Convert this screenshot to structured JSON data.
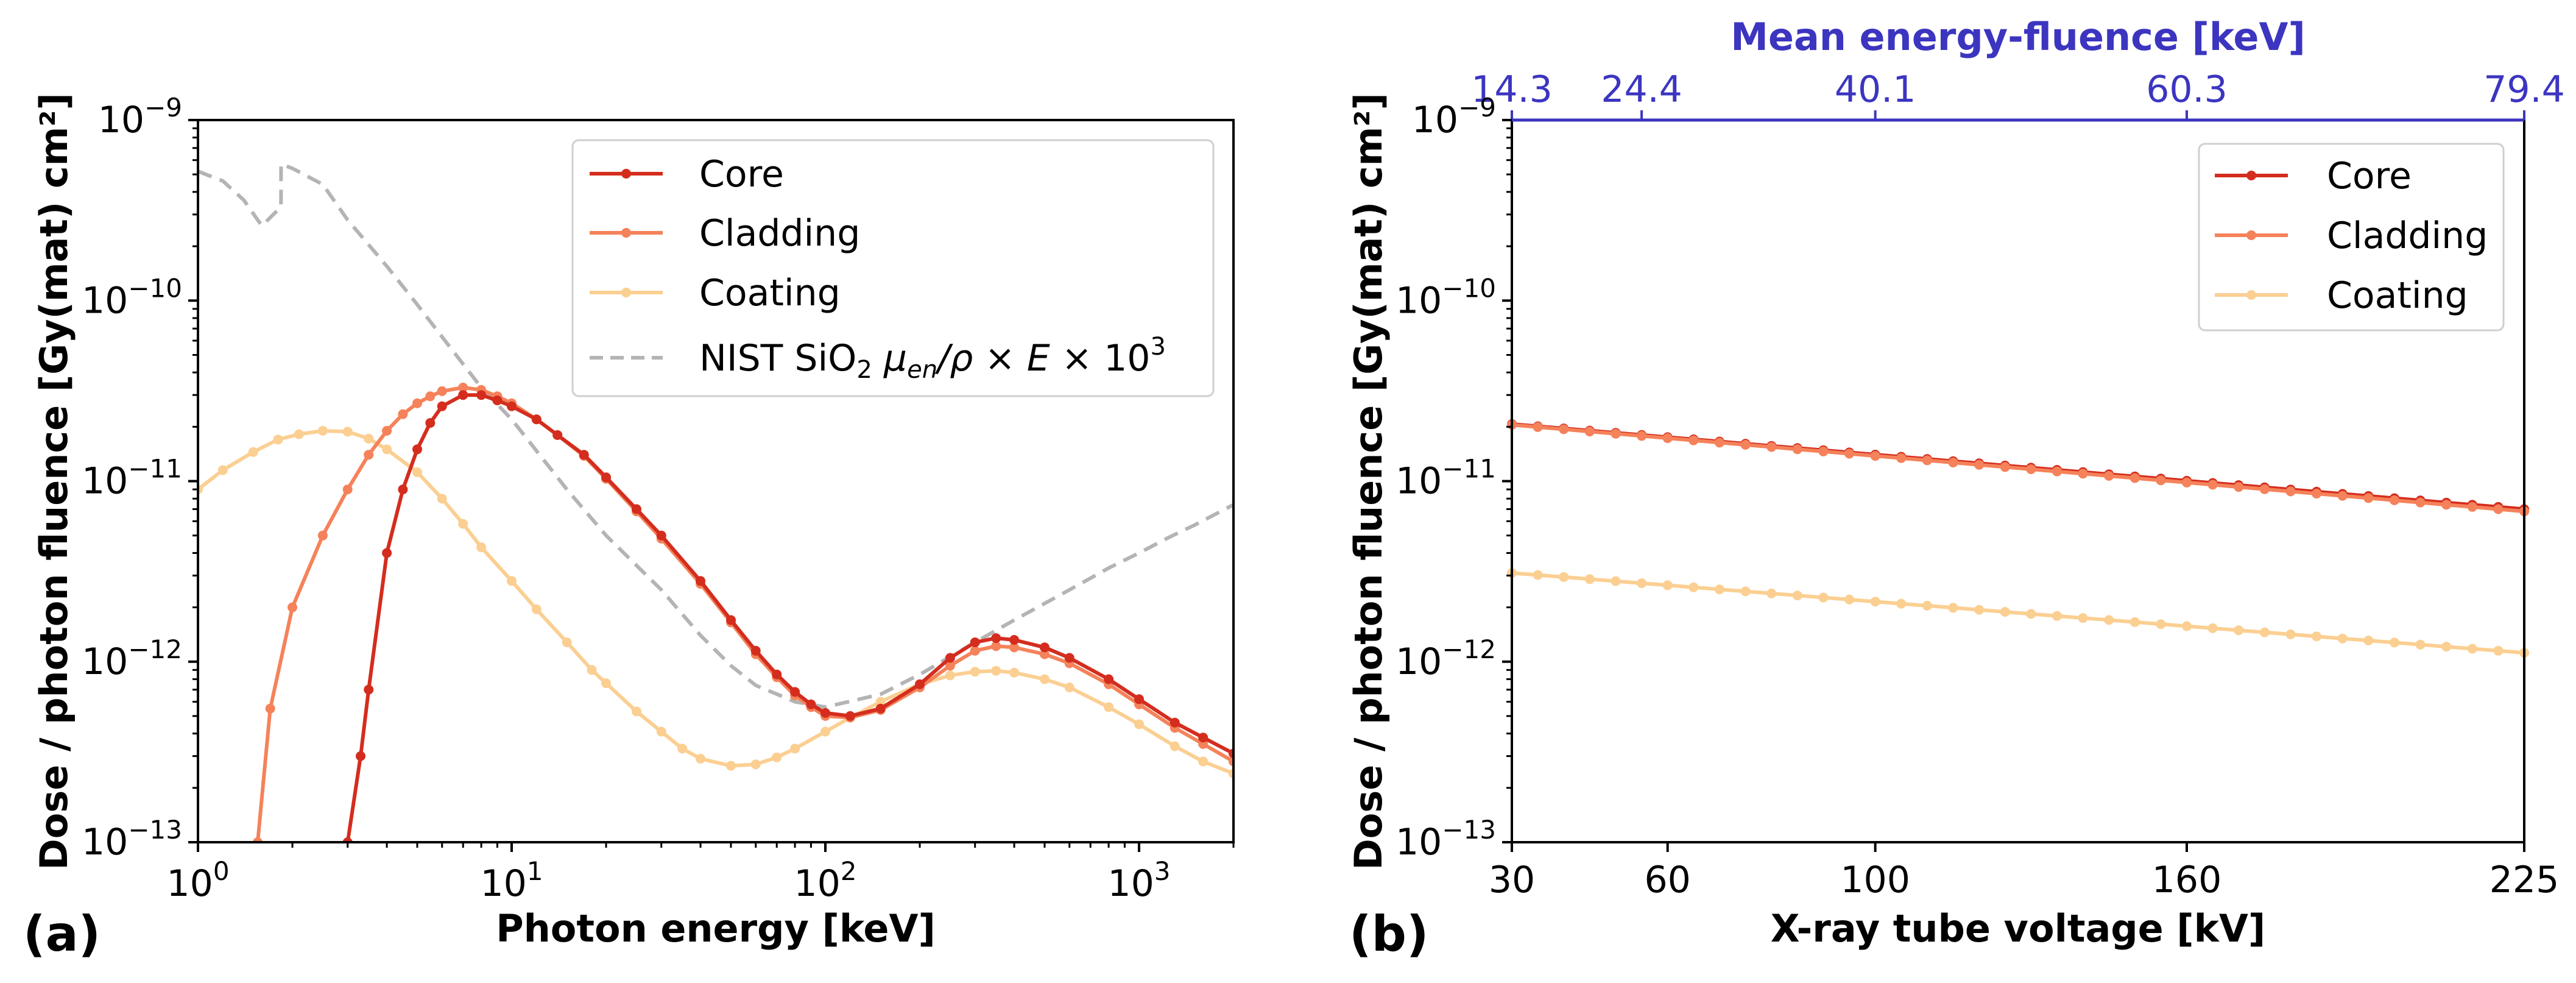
{
  "colors": {
    "core": "#d42d1e",
    "cladding": "#f5825a",
    "coating": "#fbcf92",
    "nist": "#b4b4b4",
    "top_axis": "#3c35c0"
  },
  "chart_data": [
    {
      "panel": "(a)",
      "type": "line",
      "xscale": "log",
      "yscale": "log",
      "xlabel": "Photon energy [keV]",
      "ylabel": "Dose / photon fluence [Gy(mat) cm²]",
      "xlim": [
        1,
        2000
      ],
      "ylim": [
        1e-13,
        1e-09
      ],
      "x_ticks": [
        {
          "value": 1,
          "base": "10",
          "exp": "0"
        },
        {
          "value": 10,
          "base": "10",
          "exp": "1"
        },
        {
          "value": 100,
          "base": "10",
          "exp": "2"
        },
        {
          "value": 1000,
          "base": "10",
          "exp": "3"
        }
      ],
      "y_ticks": [
        {
          "value": 1e-13,
          "base": "10",
          "exp": "−13"
        },
        {
          "value": 1e-12,
          "base": "10",
          "exp": "−12"
        },
        {
          "value": 1e-11,
          "base": "10",
          "exp": "−11"
        },
        {
          "value": 1e-10,
          "base": "10",
          "exp": "−10"
        },
        {
          "value": 1e-09,
          "base": "10",
          "exp": "−9"
        }
      ],
      "legend_position": "top-right",
      "series": [
        {
          "name": "Core",
          "color_key": "core",
          "markers": true,
          "points": [
            [
              3.0,
              1e-13
            ],
            [
              3.3,
              3e-13
            ],
            [
              3.5,
              7e-13
            ],
            [
              4.0,
              4e-12
            ],
            [
              4.5,
              9e-12
            ],
            [
              5.0,
              1.5e-11
            ],
            [
              5.5,
              2.1e-11
            ],
            [
              6.0,
              2.6e-11
            ],
            [
              7.0,
              3e-11
            ],
            [
              8.0,
              3e-11
            ],
            [
              9.0,
              2.8e-11
            ],
            [
              10,
              2.6e-11
            ],
            [
              12,
              2.2e-11
            ],
            [
              14,
              1.8e-11
            ],
            [
              17,
              1.4e-11
            ],
            [
              20,
              1.05e-11
            ],
            [
              25,
              7e-12
            ],
            [
              30,
              5e-12
            ],
            [
              40,
              2.8e-12
            ],
            [
              50,
              1.7e-12
            ],
            [
              60,
              1.15e-12
            ],
            [
              70,
              8.5e-13
            ],
            [
              80,
              6.8e-13
            ],
            [
              90,
              5.8e-13
            ],
            [
              100,
              5.2e-13
            ],
            [
              120,
              5e-13
            ],
            [
              150,
              5.5e-13
            ],
            [
              200,
              7.5e-13
            ],
            [
              250,
              1.05e-12
            ],
            [
              300,
              1.28e-12
            ],
            [
              350,
              1.35e-12
            ],
            [
              400,
              1.32e-12
            ],
            [
              500,
              1.2e-12
            ],
            [
              600,
              1.05e-12
            ],
            [
              800,
              8e-13
            ],
            [
              1000,
              6.2e-13
            ],
            [
              1300,
              4.6e-13
            ],
            [
              1600,
              3.8e-13
            ],
            [
              2000,
              3.1e-13
            ]
          ]
        },
        {
          "name": "Cladding",
          "color_key": "cladding",
          "markers": true,
          "points": [
            [
              1.55,
              1e-13
            ],
            [
              1.7,
              5.5e-13
            ],
            [
              2.0,
              2e-12
            ],
            [
              2.5,
              5e-12
            ],
            [
              3.0,
              9e-12
            ],
            [
              3.5,
              1.4e-11
            ],
            [
              4.0,
              1.9e-11
            ],
            [
              4.5,
              2.35e-11
            ],
            [
              5.0,
              2.7e-11
            ],
            [
              5.5,
              2.95e-11
            ],
            [
              6.0,
              3.15e-11
            ],
            [
              7.0,
              3.3e-11
            ],
            [
              8.0,
              3.2e-11
            ],
            [
              9.0,
              2.95e-11
            ],
            [
              10,
              2.7e-11
            ],
            [
              12,
              2.2e-11
            ],
            [
              14,
              1.8e-11
            ],
            [
              17,
              1.38e-11
            ],
            [
              20,
              1.03e-11
            ],
            [
              25,
              6.8e-12
            ],
            [
              30,
              4.8e-12
            ],
            [
              40,
              2.7e-12
            ],
            [
              50,
              1.65e-12
            ],
            [
              60,
              1.1e-12
            ],
            [
              70,
              8.2e-13
            ],
            [
              80,
              6.5e-13
            ],
            [
              90,
              5.6e-13
            ],
            [
              100,
              5e-13
            ],
            [
              120,
              4.9e-13
            ],
            [
              150,
              5.4e-13
            ],
            [
              200,
              7.2e-13
            ],
            [
              250,
              9.5e-13
            ],
            [
              300,
              1.15e-12
            ],
            [
              350,
              1.22e-12
            ],
            [
              400,
              1.2e-12
            ],
            [
              500,
              1.1e-12
            ],
            [
              600,
              9.8e-13
            ],
            [
              800,
              7.5e-13
            ],
            [
              1000,
              5.8e-13
            ],
            [
              1300,
              4.3e-13
            ],
            [
              1600,
              3.5e-13
            ],
            [
              2000,
              2.8e-13
            ]
          ]
        },
        {
          "name": "Coating",
          "color_key": "coating",
          "markers": true,
          "points": [
            [
              1.0,
              9e-12
            ],
            [
              1.2,
              1.15e-11
            ],
            [
              1.5,
              1.45e-11
            ],
            [
              1.8,
              1.7e-11
            ],
            [
              2.1,
              1.82e-11
            ],
            [
              2.5,
              1.9e-11
            ],
            [
              3.0,
              1.88e-11
            ],
            [
              3.5,
              1.72e-11
            ],
            [
              4.0,
              1.5e-11
            ],
            [
              5.0,
              1.12e-11
            ],
            [
              6.0,
              8e-12
            ],
            [
              7.0,
              5.8e-12
            ],
            [
              8.0,
              4.3e-12
            ],
            [
              10,
              2.8e-12
            ],
            [
              12,
              1.95e-12
            ],
            [
              15,
              1.28e-12
            ],
            [
              18,
              9e-13
            ],
            [
              20,
              7.6e-13
            ],
            [
              25,
              5.3e-13
            ],
            [
              30,
              4.1e-13
            ],
            [
              35,
              3.3e-13
            ],
            [
              40,
              2.9e-13
            ],
            [
              50,
              2.65e-13
            ],
            [
              60,
              2.7e-13
            ],
            [
              70,
              2.95e-13
            ],
            [
              80,
              3.3e-13
            ],
            [
              100,
              4.1e-13
            ],
            [
              120,
              4.9e-13
            ],
            [
              150,
              6e-13
            ],
            [
              200,
              7.5e-13
            ],
            [
              250,
              8.4e-13
            ],
            [
              300,
              8.8e-13
            ],
            [
              350,
              8.9e-13
            ],
            [
              400,
              8.7e-13
            ],
            [
              500,
              8e-13
            ],
            [
              600,
              7.2e-13
            ],
            [
              800,
              5.6e-13
            ],
            [
              1000,
              4.5e-13
            ],
            [
              1300,
              3.4e-13
            ],
            [
              1600,
              2.8e-13
            ],
            [
              2000,
              2.4e-13
            ]
          ]
        },
        {
          "name": "NIST SiO2 μen/ρ × E × 10³",
          "color_key": "nist",
          "dashed": true,
          "markers": false,
          "points": [
            [
              1.0,
              5.2e-10
            ],
            [
              1.2,
              4.6e-10
            ],
            [
              1.4,
              3.6e-10
            ],
            [
              1.55,
              2.8e-10
            ],
            [
              1.6,
              2.6e-10
            ],
            [
              1.839,
              3.3e-10
            ],
            [
              1.84,
              5.7e-10
            ],
            [
              2.0,
              5.4e-10
            ],
            [
              2.5,
              4.4e-10
            ],
            [
              3.0,
              2.8e-10
            ],
            [
              4.0,
              1.55e-10
            ],
            [
              5.0,
              9.5e-11
            ],
            [
              6.0,
              6.3e-11
            ],
            [
              8.0,
              3.3e-11
            ],
            [
              10,
              2.2e-11
            ],
            [
              15,
              9e-12
            ],
            [
              20,
              5e-12
            ],
            [
              30,
              2.5e-12
            ],
            [
              40,
              1.4e-12
            ],
            [
              50,
              9.5e-13
            ],
            [
              60,
              7.4e-13
            ],
            [
              80,
              6e-13
            ],
            [
              100,
              5.6e-13
            ],
            [
              150,
              6.6e-13
            ],
            [
              200,
              8.5e-13
            ],
            [
              300,
              1.28e-12
            ],
            [
              400,
              1.7e-12
            ],
            [
              500,
              2.1e-12
            ],
            [
              600,
              2.5e-12
            ],
            [
              800,
              3.3e-12
            ],
            [
              1000,
              4e-12
            ],
            [
              1250,
              4.9e-12
            ],
            [
              1500,
              5.7e-12
            ],
            [
              2000,
              7.4e-12
            ]
          ]
        }
      ]
    },
    {
      "panel": "(b)",
      "type": "line",
      "xscale": "linear",
      "yscale": "log",
      "xlabel": "X-ray tube voltage [kV]",
      "ylabel": "Dose / photon fluence [Gy(mat) cm²]",
      "top_xlabel": "Mean energy-fluence [keV]",
      "xlim": [
        30,
        225
      ],
      "ylim": [
        1e-13,
        1e-09
      ],
      "x_ticks": [
        "30",
        "60",
        "100",
        "160",
        "225"
      ],
      "top_ticks": [
        {
          "kv": 30,
          "label": "14.3"
        },
        {
          "kv": 55,
          "label": "24.4"
        },
        {
          "kv": 100,
          "label": "40.1"
        },
        {
          "kv": 160,
          "label": "60.3"
        },
        {
          "kv": 225,
          "label": "79.4"
        }
      ],
      "y_ticks": [
        {
          "value": 1e-13,
          "base": "10",
          "exp": "−13"
        },
        {
          "value": 1e-12,
          "base": "10",
          "exp": "−12"
        },
        {
          "value": 1e-11,
          "base": "10",
          "exp": "−11"
        },
        {
          "value": 1e-10,
          "base": "10",
          "exp": "−10"
        },
        {
          "value": 1e-09,
          "base": "10",
          "exp": "−9"
        }
      ],
      "legend_position": "top-right",
      "series": [
        {
          "name": "Core",
          "color_key": "core",
          "markers": true,
          "x_start": 30,
          "x_end": 225,
          "x_step": 5,
          "y_start": 2.07e-11,
          "y_end": 7e-12
        },
        {
          "name": "Cladding",
          "color_key": "cladding",
          "markers": true,
          "x_start": 30,
          "x_end": 225,
          "x_step": 5,
          "y_start": 2.05e-11,
          "y_end": 6.8e-12
        },
        {
          "name": "Coating",
          "color_key": "coating",
          "markers": true,
          "x_start": 30,
          "x_end": 225,
          "x_step": 5,
          "y_start": 3.1e-12,
          "y_end": 1.12e-12
        }
      ]
    }
  ]
}
